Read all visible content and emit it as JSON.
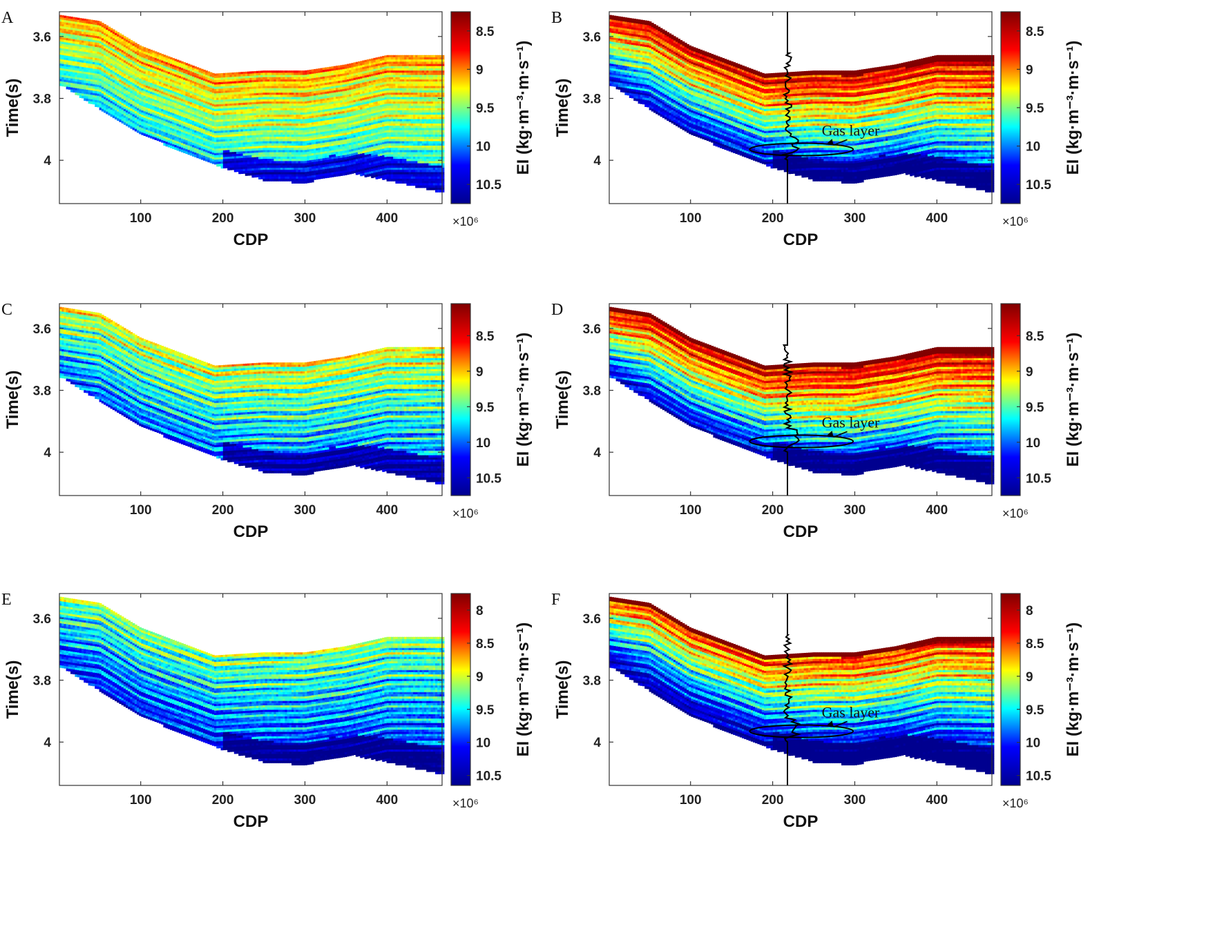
{
  "figure": {
    "panels_order": [
      "A",
      "B",
      "C",
      "D",
      "E",
      "F"
    ]
  },
  "colormap": {
    "name": "jet",
    "stops": [
      "#00008f",
      "#0000ff",
      "#00ffff",
      "#ffff00",
      "#ff0000",
      "#800000"
    ]
  },
  "chart_data": [
    {
      "panel": "A",
      "type": "heatmap",
      "title": "",
      "xlabel": "CDP",
      "ylabel": "Time(s)",
      "xlim": [
        1,
        467
      ],
      "ylim": [
        3.52,
        4.14
      ],
      "xticks": [
        100,
        200,
        300,
        400
      ],
      "xtick_labels": [
        "100",
        "200",
        "300",
        "400"
      ],
      "yticks": [
        3.6,
        3.8,
        4.0
      ],
      "ytick_labels": [
        "3.6",
        "3.8",
        "4"
      ],
      "colorbar": {
        "label": "EI (kg·m⁻³·m·s⁻¹)",
        "multiplier": "×10⁶",
        "range": [
          10.75,
          8.25
        ],
        "ticks": [
          8.5,
          9,
          9.5,
          10,
          10.5
        ],
        "tick_labels": [
          "8.5",
          "9",
          "9.5",
          "10",
          "10.5"
        ]
      },
      "top_horizon": [
        [
          1,
          3.53
        ],
        [
          50,
          3.55
        ],
        [
          100,
          3.63
        ],
        [
          150,
          3.68
        ],
        [
          190,
          3.72
        ],
        [
          250,
          3.71
        ],
        [
          300,
          3.71
        ],
        [
          350,
          3.69
        ],
        [
          400,
          3.66
        ],
        [
          467,
          3.66
        ]
      ],
      "bottom_horizon": [
        [
          1,
          3.75
        ],
        [
          50,
          3.83
        ],
        [
          100,
          3.91
        ],
        [
          150,
          3.97
        ],
        [
          200,
          4.02
        ],
        [
          250,
          4.06
        ],
        [
          300,
          4.07
        ],
        [
          330,
          4.05
        ],
        [
          360,
          4.04
        ],
        [
          400,
          4.06
        ],
        [
          467,
          4.1
        ]
      ],
      "mean_level": 0.62,
      "variation": 0.18,
      "has_well_log": false
    },
    {
      "panel": "B",
      "type": "heatmap",
      "title": "",
      "xlabel": "CDP",
      "ylabel": "Time(s)",
      "xlim": [
        1,
        467
      ],
      "ylim": [
        3.52,
        4.14
      ],
      "xticks": [
        100,
        200,
        300,
        400
      ],
      "xtick_labels": [
        "100",
        "200",
        "300",
        "400"
      ],
      "yticks": [
        3.6,
        3.8,
        4.0
      ],
      "ytick_labels": [
        "3.6",
        "3.8",
        "4"
      ],
      "colorbar": {
        "label": "EI (kg·m⁻³·m·s⁻¹)",
        "multiplier": "×10⁶",
        "range": [
          10.75,
          8.25
        ],
        "ticks": [
          8.5,
          9,
          9.5,
          10,
          10.5
        ],
        "tick_labels": [
          "8.5",
          "9",
          "9.5",
          "10",
          "10.5"
        ]
      },
      "top_horizon": [
        [
          1,
          3.53
        ],
        [
          50,
          3.55
        ],
        [
          100,
          3.63
        ],
        [
          150,
          3.68
        ],
        [
          190,
          3.72
        ],
        [
          250,
          3.71
        ],
        [
          300,
          3.71
        ],
        [
          350,
          3.69
        ],
        [
          400,
          3.66
        ],
        [
          467,
          3.66
        ]
      ],
      "bottom_horizon": [
        [
          1,
          3.75
        ],
        [
          50,
          3.83
        ],
        [
          100,
          3.91
        ],
        [
          150,
          3.97
        ],
        [
          200,
          4.02
        ],
        [
          250,
          4.06
        ],
        [
          300,
          4.07
        ],
        [
          330,
          4.05
        ],
        [
          360,
          4.04
        ],
        [
          400,
          4.06
        ],
        [
          467,
          4.1
        ]
      ],
      "mean_level": 0.6,
      "variation": 0.22,
      "has_well_log": true,
      "well_cdp": 218,
      "annotation": {
        "text": "Gas layer",
        "text_cdp": 295,
        "text_time": 3.92,
        "ellipse_center": [
          235,
          3.965
        ],
        "ellipse_radius": [
          63,
          0.02
        ]
      }
    },
    {
      "panel": "C",
      "type": "heatmap",
      "title": "",
      "xlabel": "CDP",
      "ylabel": "Time(s)",
      "xlim": [
        1,
        467
      ],
      "ylim": [
        3.52,
        4.14
      ],
      "xticks": [
        100,
        200,
        300,
        400
      ],
      "xtick_labels": [
        "100",
        "200",
        "300",
        "400"
      ],
      "yticks": [
        3.6,
        3.8,
        4.0
      ],
      "ytick_labels": [
        "3.6",
        "3.8",
        "4"
      ],
      "colorbar": {
        "label": "EI (kg·m⁻³·m·s⁻¹)",
        "multiplier": "×10⁶",
        "range": [
          10.75,
          8.05
        ],
        "ticks": [
          8.5,
          9,
          9.5,
          10,
          10.5
        ],
        "tick_labels": [
          "8.5",
          "9",
          "9.5",
          "10",
          "10.5"
        ]
      },
      "top_horizon": [
        [
          1,
          3.53
        ],
        [
          50,
          3.55
        ],
        [
          100,
          3.63
        ],
        [
          150,
          3.68
        ],
        [
          190,
          3.72
        ],
        [
          250,
          3.71
        ],
        [
          300,
          3.71
        ],
        [
          350,
          3.69
        ],
        [
          400,
          3.66
        ],
        [
          467,
          3.66
        ]
      ],
      "bottom_horizon": [
        [
          1,
          3.75
        ],
        [
          50,
          3.83
        ],
        [
          100,
          3.91
        ],
        [
          150,
          3.97
        ],
        [
          200,
          4.02
        ],
        [
          250,
          4.06
        ],
        [
          300,
          4.07
        ],
        [
          330,
          4.05
        ],
        [
          360,
          4.04
        ],
        [
          400,
          4.06
        ],
        [
          467,
          4.1
        ]
      ],
      "mean_level": 0.52,
      "variation": 0.22,
      "has_well_log": false
    },
    {
      "panel": "D",
      "type": "heatmap",
      "title": "",
      "xlabel": "CDP",
      "ylabel": "Time(s)",
      "xlim": [
        1,
        467
      ],
      "ylim": [
        3.52,
        4.14
      ],
      "xticks": [
        100,
        200,
        300,
        400
      ],
      "xtick_labels": [
        "100",
        "200",
        "300",
        "400"
      ],
      "yticks": [
        3.6,
        3.8,
        4.0
      ],
      "ytick_labels": [
        "3.6",
        "3.8",
        "4"
      ],
      "colorbar": {
        "label": "EI (kg·m⁻³·m·s⁻¹)",
        "multiplier": "×10⁶",
        "range": [
          10.75,
          8.05
        ],
        "ticks": [
          8.5,
          9,
          9.5,
          10,
          10.5
        ],
        "tick_labels": [
          "8.5",
          "9",
          "9.5",
          "10",
          "10.5"
        ]
      },
      "top_horizon": [
        [
          1,
          3.53
        ],
        [
          50,
          3.55
        ],
        [
          100,
          3.63
        ],
        [
          150,
          3.68
        ],
        [
          190,
          3.72
        ],
        [
          250,
          3.71
        ],
        [
          300,
          3.71
        ],
        [
          350,
          3.69
        ],
        [
          400,
          3.66
        ],
        [
          467,
          3.66
        ]
      ],
      "bottom_horizon": [
        [
          1,
          3.75
        ],
        [
          50,
          3.83
        ],
        [
          100,
          3.91
        ],
        [
          150,
          3.97
        ],
        [
          200,
          4.02
        ],
        [
          250,
          4.06
        ],
        [
          300,
          4.07
        ],
        [
          330,
          4.05
        ],
        [
          360,
          4.04
        ],
        [
          400,
          4.06
        ],
        [
          467,
          4.1
        ]
      ],
      "mean_level": 0.6,
      "variation": 0.22,
      "has_well_log": true,
      "well_cdp": 218,
      "annotation": {
        "text": "Gas layer",
        "text_cdp": 295,
        "text_time": 3.92,
        "ellipse_center": [
          235,
          3.965
        ],
        "ellipse_radius": [
          63,
          0.02
        ]
      }
    },
    {
      "panel": "E",
      "type": "heatmap",
      "title": "",
      "xlabel": "CDP",
      "ylabel": "Time(s)",
      "xlim": [
        1,
        467
      ],
      "ylim": [
        3.52,
        4.14
      ],
      "xticks": [
        100,
        200,
        300,
        400
      ],
      "xtick_labels": [
        "100",
        "200",
        "300",
        "400"
      ],
      "yticks": [
        3.6,
        3.8,
        4.0
      ],
      "ytick_labels": [
        "3.6",
        "3.8",
        "4"
      ],
      "colorbar": {
        "label": "EI (kg·m⁻³·m·s⁻¹)",
        "multiplier": "×10⁶",
        "range": [
          10.65,
          7.75
        ],
        "ticks": [
          8,
          8.5,
          9,
          9.5,
          10,
          10.5
        ],
        "tick_labels": [
          "8",
          "8.5",
          "9",
          "9.5",
          "10",
          "10.5"
        ]
      },
      "top_horizon": [
        [
          1,
          3.53
        ],
        [
          50,
          3.55
        ],
        [
          100,
          3.63
        ],
        [
          150,
          3.68
        ],
        [
          190,
          3.72
        ],
        [
          250,
          3.71
        ],
        [
          300,
          3.71
        ],
        [
          350,
          3.69
        ],
        [
          400,
          3.66
        ],
        [
          467,
          3.66
        ]
      ],
      "bottom_horizon": [
        [
          1,
          3.75
        ],
        [
          50,
          3.83
        ],
        [
          100,
          3.91
        ],
        [
          150,
          3.97
        ],
        [
          200,
          4.02
        ],
        [
          250,
          4.06
        ],
        [
          300,
          4.07
        ],
        [
          330,
          4.05
        ],
        [
          360,
          4.04
        ],
        [
          400,
          4.06
        ],
        [
          467,
          4.1
        ]
      ],
      "mean_level": 0.45,
      "variation": 0.22,
      "has_well_log": false
    },
    {
      "panel": "F",
      "type": "heatmap",
      "title": "",
      "xlabel": "CDP",
      "ylabel": "Time(s)",
      "xlim": [
        1,
        467
      ],
      "ylim": [
        3.52,
        4.14
      ],
      "xticks": [
        100,
        200,
        300,
        400
      ],
      "xtick_labels": [
        "100",
        "200",
        "300",
        "400"
      ],
      "yticks": [
        3.6,
        3.8,
        4.0
      ],
      "ytick_labels": [
        "3.6",
        "3.8",
        "4"
      ],
      "colorbar": {
        "label": "EI (kg·m⁻³·m·s⁻¹)",
        "multiplier": "×10⁶",
        "range": [
          10.65,
          7.75
        ],
        "ticks": [
          8,
          8.5,
          9,
          9.5,
          10,
          10.5
        ],
        "tick_labels": [
          "8",
          "8.5",
          "9",
          "9.5",
          "10",
          "10.5"
        ]
      },
      "top_horizon": [
        [
          1,
          3.53
        ],
        [
          50,
          3.55
        ],
        [
          100,
          3.63
        ],
        [
          150,
          3.68
        ],
        [
          190,
          3.72
        ],
        [
          250,
          3.71
        ],
        [
          300,
          3.71
        ],
        [
          350,
          3.69
        ],
        [
          400,
          3.66
        ],
        [
          467,
          3.66
        ]
      ],
      "bottom_horizon": [
        [
          1,
          3.75
        ],
        [
          50,
          3.83
        ],
        [
          100,
          3.91
        ],
        [
          150,
          3.97
        ],
        [
          200,
          4.02
        ],
        [
          250,
          4.06
        ],
        [
          300,
          4.07
        ],
        [
          330,
          4.05
        ],
        [
          360,
          4.04
        ],
        [
          400,
          4.06
        ],
        [
          467,
          4.1
        ]
      ],
      "mean_level": 0.52,
      "variation": 0.22,
      "has_well_log": true,
      "well_cdp": 218,
      "annotation": {
        "text": "Gas layer",
        "text_cdp": 295,
        "text_time": 3.92,
        "ellipse_center": [
          235,
          3.965
        ],
        "ellipse_radius": [
          63,
          0.02
        ]
      }
    }
  ]
}
